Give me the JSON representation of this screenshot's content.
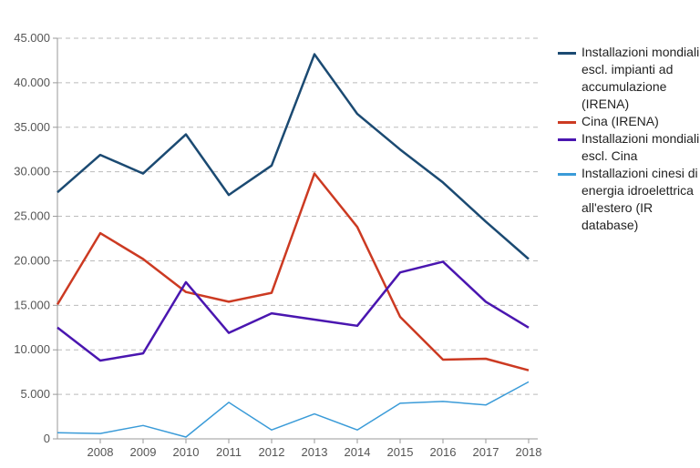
{
  "chart_data": {
    "type": "line",
    "x": [
      "2007",
      "2008",
      "2009",
      "2010",
      "2011",
      "2012",
      "2013",
      "2014",
      "2015",
      "2016",
      "2017",
      "2018"
    ],
    "x_tick_labels": [
      "2008",
      "2009",
      "2010",
      "2011",
      "2012",
      "2013",
      "2014",
      "2015",
      "2016",
      "2017",
      "2018"
    ],
    "y_tick_labels": [
      "0",
      "5.000",
      "10.000",
      "15.000",
      "20.000",
      "25.000",
      "30.000",
      "35.000",
      "40.000",
      "45.000"
    ],
    "ylim": [
      0,
      45000
    ],
    "grid": "horizontal dashed",
    "legend_position": "right",
    "series": [
      {
        "name": "Installazioni mondiali escl. impianti ad accumulazione (IRENA)",
        "color": "#1b4a72",
        "values": [
          27700,
          31900,
          29800,
          34200,
          27400,
          30700,
          43200,
          36500,
          32500,
          28800,
          24400,
          20200
        ]
      },
      {
        "name": "Cina (IRENA)",
        "color": "#cc3a22",
        "values": [
          15100,
          23100,
          20200,
          16500,
          15400,
          16400,
          29800,
          23800,
          13700,
          8900,
          9000,
          7700
        ]
      },
      {
        "name": "Installazioni mondiali escl. Cina",
        "color": "#4a16b0",
        "values": [
          12500,
          8800,
          9600,
          17600,
          11900,
          14100,
          13400,
          12700,
          18700,
          19900,
          15400,
          12500
        ]
      },
      {
        "name": "Installazioni cinesi di energia idroelettrica all'estero (IR database)",
        "color": "#3a9bd8",
        "values": [
          700,
          600,
          1500,
          200,
          4100,
          1000,
          2800,
          1000,
          4000,
          4200,
          3800,
          6400
        ]
      }
    ]
  }
}
